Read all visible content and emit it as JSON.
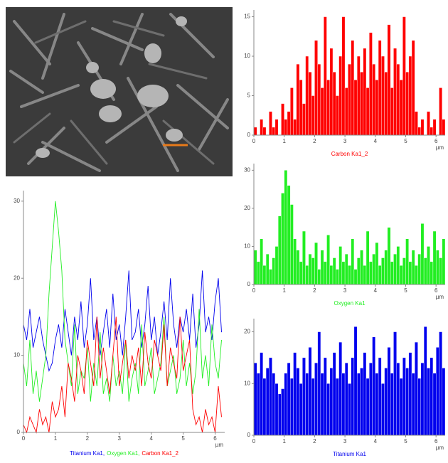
{
  "chart_data": [
    {
      "type": "bar",
      "title": "Carbon Ka1_2",
      "color": "#ff0000",
      "xlabel": "µm",
      "x": [
        0,
        0.1,
        0.2,
        0.3,
        0.4,
        0.5,
        0.6,
        0.7,
        0.8,
        0.9,
        1,
        1.1,
        1.2,
        1.3,
        1.4,
        1.5,
        1.6,
        1.7,
        1.8,
        1.9,
        2,
        2.1,
        2.2,
        2.3,
        2.4,
        2.5,
        2.6,
        2.7,
        2.8,
        2.9,
        3,
        3.1,
        3.2,
        3.3,
        3.4,
        3.5,
        3.6,
        3.7,
        3.8,
        3.9,
        4,
        4.1,
        4.2,
        4.3,
        4.4,
        4.5,
        4.6,
        4.7,
        4.8,
        4.9,
        5,
        5.1,
        5.2,
        5.3,
        5.4,
        5.5,
        5.6,
        5.7,
        5.8,
        5.9,
        6,
        6.1,
        6.2
      ],
      "values": [
        1,
        0,
        2,
        1,
        0,
        3,
        1,
        2,
        0,
        4,
        2,
        3,
        6,
        2,
        9,
        7,
        4,
        10,
        8,
        5,
        12,
        9,
        6,
        15,
        7,
        11,
        8,
        5,
        10,
        15,
        6,
        9,
        12,
        7,
        10,
        8,
        11,
        6,
        13,
        9,
        7,
        12,
        10,
        8,
        14,
        6,
        11,
        9,
        7,
        15,
        8,
        10,
        12,
        3,
        1,
        2,
        0,
        3,
        1,
        2,
        0,
        6,
        2
      ],
      "xlim": [
        0,
        6.3
      ],
      "xticks": [
        0,
        1,
        2,
        3,
        4,
        5,
        6
      ],
      "ylim": [
        0,
        15.5
      ],
      "yticks": [
        0,
        5,
        10,
        15
      ]
    },
    {
      "type": "bar",
      "title": "Oxygen Ka1",
      "color": "#22ee22",
      "xlabel": "µm",
      "x": [
        0,
        0.1,
        0.2,
        0.3,
        0.4,
        0.5,
        0.6,
        0.7,
        0.8,
        0.9,
        1,
        1.1,
        1.2,
        1.3,
        1.4,
        1.5,
        1.6,
        1.7,
        1.8,
        1.9,
        2,
        2.1,
        2.2,
        2.3,
        2.4,
        2.5,
        2.6,
        2.7,
        2.8,
        2.9,
        3,
        3.1,
        3.2,
        3.3,
        3.4,
        3.5,
        3.6,
        3.7,
        3.8,
        3.9,
        4,
        4.1,
        4.2,
        4.3,
        4.4,
        4.5,
        4.6,
        4.7,
        4.8,
        4.9,
        5,
        5.1,
        5.2,
        5.3,
        5.4,
        5.5,
        5.6,
        5.7,
        5.8,
        5.9,
        6,
        6.1,
        6.2
      ],
      "values": [
        9,
        6,
        12,
        5,
        8,
        4,
        7,
        10,
        18,
        24,
        30,
        26,
        21,
        12,
        9,
        6,
        14,
        5,
        8,
        7,
        11,
        4,
        9,
        6,
        13,
        5,
        7,
        4,
        10,
        6,
        8,
        5,
        12,
        4,
        7,
        9,
        5,
        14,
        6,
        8,
        11,
        5,
        7,
        9,
        15,
        6,
        8,
        10,
        5,
        7,
        12,
        6,
        9,
        5,
        8,
        16,
        7,
        10,
        6,
        14,
        9,
        7,
        12
      ],
      "xlim": [
        0,
        6.3
      ],
      "xticks": [
        0,
        1,
        2,
        3,
        4,
        5,
        6
      ],
      "ylim": [
        0,
        31
      ],
      "yticks": [
        0,
        10,
        20,
        30
      ]
    },
    {
      "type": "bar",
      "title": "Titanium Ka1",
      "color": "#0000ee",
      "xlabel": "µm",
      "x": [
        0,
        0.1,
        0.2,
        0.3,
        0.4,
        0.5,
        0.6,
        0.7,
        0.8,
        0.9,
        1,
        1.1,
        1.2,
        1.3,
        1.4,
        1.5,
        1.6,
        1.7,
        1.8,
        1.9,
        2,
        2.1,
        2.2,
        2.3,
        2.4,
        2.5,
        2.6,
        2.7,
        2.8,
        2.9,
        3,
        3.1,
        3.2,
        3.3,
        3.4,
        3.5,
        3.6,
        3.7,
        3.8,
        3.9,
        4,
        4.1,
        4.2,
        4.3,
        4.4,
        4.5,
        4.6,
        4.7,
        4.8,
        4.9,
        5,
        5.1,
        5.2,
        5.3,
        5.4,
        5.5,
        5.6,
        5.7,
        5.8,
        5.9,
        6,
        6.1,
        6.2
      ],
      "values": [
        14,
        12,
        16,
        11,
        13,
        15,
        12,
        10,
        8,
        9,
        12,
        14,
        11,
        16,
        13,
        10,
        15,
        12,
        17,
        11,
        14,
        20,
        12,
        15,
        10,
        13,
        16,
        11,
        18,
        12,
        14,
        10,
        15,
        21,
        12,
        13,
        16,
        11,
        14,
        19,
        12,
        15,
        10,
        13,
        17,
        12,
        20,
        14,
        11,
        15,
        13,
        16,
        12,
        18,
        11,
        14,
        21,
        13,
        15,
        12,
        17,
        20,
        13
      ],
      "xlim": [
        0,
        6.3
      ],
      "xticks": [
        0,
        1,
        2,
        3,
        4,
        5,
        6
      ],
      "ylim": [
        0,
        22
      ],
      "yticks": [
        0,
        10,
        20
      ]
    },
    {
      "type": "line",
      "xlabel": "µm",
      "x": [
        0,
        0.1,
        0.2,
        0.3,
        0.4,
        0.5,
        0.6,
        0.7,
        0.8,
        0.9,
        1,
        1.1,
        1.2,
        1.3,
        1.4,
        1.5,
        1.6,
        1.7,
        1.8,
        1.9,
        2,
        2.1,
        2.2,
        2.3,
        2.4,
        2.5,
        2.6,
        2.7,
        2.8,
        2.9,
        3,
        3.1,
        3.2,
        3.3,
        3.4,
        3.5,
        3.6,
        3.7,
        3.8,
        3.9,
        4,
        4.1,
        4.2,
        4.3,
        4.4,
        4.5,
        4.6,
        4.7,
        4.8,
        4.9,
        5,
        5.1,
        5.2,
        5.3,
        5.4,
        5.5,
        5.6,
        5.7,
        5.8,
        5.9,
        6,
        6.1,
        6.2
      ],
      "series": [
        {
          "name": "Titanium Ka1,",
          "color": "#0000ee",
          "values": [
            14,
            12,
            16,
            11,
            13,
            15,
            12,
            10,
            8,
            9,
            12,
            14,
            11,
            16,
            13,
            10,
            15,
            12,
            17,
            11,
            14,
            20,
            12,
            15,
            10,
            13,
            16,
            11,
            18,
            12,
            14,
            10,
            15,
            21,
            12,
            13,
            16,
            11,
            14,
            19,
            12,
            15,
            10,
            13,
            17,
            12,
            20,
            14,
            11,
            15,
            13,
            16,
            12,
            18,
            11,
            14,
            21,
            13,
            15,
            12,
            17,
            20,
            13
          ]
        },
        {
          "name": "Oxygen Ka1,",
          "color": "#22ee22",
          "values": [
            9,
            6,
            12,
            5,
            8,
            4,
            7,
            10,
            18,
            24,
            30,
            26,
            21,
            12,
            9,
            6,
            14,
            5,
            8,
            7,
            11,
            4,
            9,
            6,
            13,
            5,
            7,
            4,
            10,
            6,
            8,
            5,
            12,
            4,
            7,
            9,
            5,
            14,
            6,
            8,
            11,
            5,
            7,
            9,
            15,
            6,
            8,
            10,
            5,
            7,
            12,
            6,
            9,
            5,
            8,
            16,
            7,
            10,
            6,
            14,
            9,
            7,
            12
          ]
        },
        {
          "name": "Carbon Ka1_2",
          "color": "#ff0000",
          "values": [
            1,
            0,
            2,
            1,
            0,
            3,
            1,
            2,
            0,
            4,
            2,
            3,
            6,
            2,
            9,
            7,
            4,
            10,
            8,
            5,
            12,
            9,
            6,
            15,
            7,
            11,
            8,
            5,
            10,
            15,
            6,
            9,
            12,
            7,
            10,
            8,
            11,
            6,
            13,
            9,
            7,
            12,
            10,
            8,
            14,
            6,
            11,
            9,
            7,
            15,
            8,
            10,
            12,
            3,
            1,
            2,
            0,
            3,
            1,
            2,
            0,
            6,
            2
          ]
        }
      ],
      "xlim": [
        0,
        6.3
      ],
      "xticks": [
        0,
        1,
        2,
        3,
        4,
        5,
        6
      ],
      "ylim": [
        0,
        31
      ],
      "yticks": [
        0,
        10,
        20,
        30
      ]
    }
  ]
}
